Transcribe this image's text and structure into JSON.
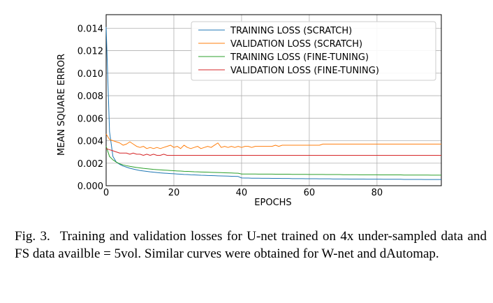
{
  "chart_data": {
    "type": "line",
    "title": "",
    "xlabel": "EPOCHS",
    "ylabel": "MEAN SQUARE ERROR",
    "xlim": [
      0,
      99
    ],
    "ylim": [
      0,
      0.0152
    ],
    "x_ticks": [
      0,
      20,
      40,
      60,
      80
    ],
    "x_tick_labels": [
      "0",
      "20",
      "40",
      "60",
      "80"
    ],
    "y_ticks": [
      0,
      0.002,
      0.004,
      0.006,
      0.008,
      0.01,
      0.012,
      0.014
    ],
    "y_tick_labels": [
      "0.000",
      "0.002",
      "0.004",
      "0.006",
      "0.008",
      "0.010",
      "0.012",
      "0.014"
    ],
    "grid": true,
    "legend_position": "top-right",
    "x": [
      0,
      1,
      2,
      3,
      4,
      5,
      6,
      7,
      8,
      9,
      10,
      11,
      12,
      13,
      14,
      15,
      16,
      17,
      18,
      19,
      20,
      21,
      22,
      23,
      24,
      25,
      26,
      27,
      28,
      29,
      30,
      31,
      32,
      33,
      34,
      35,
      36,
      37,
      38,
      39,
      40,
      41,
      42,
      43,
      44,
      45,
      46,
      47,
      48,
      49,
      50,
      51,
      52,
      53,
      54,
      55,
      56,
      57,
      58,
      59,
      60,
      61,
      62,
      63,
      64,
      65,
      66,
      67,
      68,
      69,
      70,
      71,
      72,
      73,
      74,
      75,
      76,
      77,
      78,
      79,
      80,
      81,
      82,
      83,
      84,
      85,
      86,
      87,
      88,
      89,
      90,
      91,
      92,
      93,
      94,
      95,
      96,
      97,
      98,
      99
    ],
    "series": [
      {
        "name": "TRAINING LOSS (SCRATCH)",
        "color": "#1f77b4",
        "values": [
          0.0141,
          0.0048,
          0.0026,
          0.0021,
          0.0019,
          0.00175,
          0.00165,
          0.00155,
          0.00148,
          0.00141,
          0.00135,
          0.00131,
          0.00127,
          0.00123,
          0.0012,
          0.00117,
          0.00114,
          0.00112,
          0.0011,
          0.00108,
          0.00106,
          0.00104,
          0.00102,
          0.001,
          0.00099,
          0.00097,
          0.00096,
          0.00095,
          0.00093,
          0.00092,
          0.00091,
          0.0009,
          0.00089,
          0.00088,
          0.00087,
          0.00086,
          0.00085,
          0.00084,
          0.00083,
          0.00082,
          0.00069,
          0.00068,
          0.00068,
          0.00067,
          0.00067,
          0.00067,
          0.00066,
          0.00066,
          0.00066,
          0.00065,
          0.00065,
          0.00065,
          0.00064,
          0.00064,
          0.00064,
          0.00063,
          0.00063,
          0.00063,
          0.00063,
          0.00062,
          0.00062,
          0.00062,
          0.00062,
          0.00061,
          0.00061,
          0.00061,
          0.00061,
          0.0006,
          0.0006,
          0.0006,
          0.0006,
          0.0006,
          0.00059,
          0.00059,
          0.00059,
          0.00059,
          0.00059,
          0.00058,
          0.00058,
          0.00058,
          0.00058,
          0.00058,
          0.00057,
          0.00057,
          0.00057,
          0.00057,
          0.00057,
          0.00057,
          0.00056,
          0.00056,
          0.00056,
          0.00056,
          0.00056,
          0.00056,
          0.00055,
          0.00055,
          0.00055,
          0.00055,
          0.00055,
          0.00055
        ]
      },
      {
        "name": "VALIDATION LOSS (SCRATCH)",
        "color": "#ff7f0e",
        "values": [
          0.0046,
          0.0041,
          0.004,
          0.0039,
          0.0038,
          0.0036,
          0.0037,
          0.0039,
          0.0037,
          0.0035,
          0.0034,
          0.0035,
          0.0033,
          0.0034,
          0.0033,
          0.0034,
          0.0033,
          0.0034,
          0.0035,
          0.0036,
          0.0034,
          0.0035,
          0.0033,
          0.0036,
          0.0034,
          0.0033,
          0.0034,
          0.0035,
          0.0033,
          0.0034,
          0.0035,
          0.0034,
          0.0036,
          0.0038,
          0.0034,
          0.0035,
          0.0034,
          0.0035,
          0.0034,
          0.0035,
          0.0034,
          0.0035,
          0.0035,
          0.0034,
          0.0035,
          0.0035,
          0.0035,
          0.0035,
          0.0035,
          0.0035,
          0.0036,
          0.0035,
          0.0036,
          0.0036,
          0.0036,
          0.0036,
          0.0036,
          0.0036,
          0.0036,
          0.0036,
          0.0036,
          0.0036,
          0.0036,
          0.0036,
          0.0037,
          0.0037,
          0.0037,
          0.0037,
          0.0037,
          0.0037,
          0.0037,
          0.0037,
          0.0037,
          0.0037,
          0.0037,
          0.0037,
          0.0037,
          0.0037,
          0.0037,
          0.0037,
          0.0037,
          0.0037,
          0.0037,
          0.0037,
          0.0037,
          0.0037,
          0.0037,
          0.0037,
          0.0037,
          0.0037,
          0.0037,
          0.0037,
          0.0037,
          0.0037,
          0.0037,
          0.0037,
          0.0037,
          0.0037,
          0.0037,
          0.0037
        ]
      },
      {
        "name": "TRAINING LOSS (FINE-TUNING)",
        "color": "#2ca02c",
        "values": [
          0.0035,
          0.0026,
          0.0023,
          0.0021,
          0.00195,
          0.00185,
          0.00178,
          0.00172,
          0.00167,
          0.00162,
          0.00158,
          0.00154,
          0.00151,
          0.00148,
          0.00145,
          0.00143,
          0.00141,
          0.00139,
          0.00137,
          0.00135,
          0.00133,
          0.00131,
          0.0013,
          0.00128,
          0.00127,
          0.00126,
          0.00124,
          0.00123,
          0.00122,
          0.00121,
          0.0012,
          0.00119,
          0.00118,
          0.00117,
          0.00116,
          0.00115,
          0.00114,
          0.00113,
          0.00112,
          0.00111,
          0.00104,
          0.00104,
          0.00104,
          0.00104,
          0.00104,
          0.00103,
          0.00103,
          0.00103,
          0.00103,
          0.00103,
          0.00102,
          0.00102,
          0.00102,
          0.00102,
          0.00102,
          0.00101,
          0.00101,
          0.00101,
          0.00101,
          0.00101,
          0.001,
          0.001,
          0.001,
          0.001,
          0.001,
          0.00099,
          0.00099,
          0.00099,
          0.00099,
          0.00099,
          0.00098,
          0.00098,
          0.00098,
          0.00098,
          0.00098,
          0.00097,
          0.00097,
          0.00097,
          0.00097,
          0.00097,
          0.00097,
          0.00096,
          0.00096,
          0.00096,
          0.00096,
          0.00096,
          0.00096,
          0.00096,
          0.00095,
          0.00095,
          0.00095,
          0.00095,
          0.00095,
          0.00095,
          0.00095,
          0.00095,
          0.00094,
          0.00094,
          0.00094,
          0.00094
        ]
      },
      {
        "name": "VALIDATION LOSS (FINE-TUNING)",
        "color": "#d62728",
        "values": [
          0.0033,
          0.0032,
          0.0031,
          0.003,
          0.0029,
          0.0029,
          0.0029,
          0.0028,
          0.0029,
          0.0028,
          0.0028,
          0.0027,
          0.0028,
          0.0027,
          0.0028,
          0.0027,
          0.0027,
          0.0028,
          0.0027,
          0.0027,
          0.0027,
          0.0027,
          0.0027,
          0.0027,
          0.0027,
          0.0027,
          0.0027,
          0.0027,
          0.0027,
          0.0027,
          0.0027,
          0.0027,
          0.0027,
          0.0027,
          0.0027,
          0.0027,
          0.0027,
          0.0027,
          0.0027,
          0.0027,
          0.0027,
          0.0027,
          0.0027,
          0.0027,
          0.0027,
          0.0027,
          0.0027,
          0.0027,
          0.0027,
          0.0027,
          0.0027,
          0.0027,
          0.0027,
          0.0027,
          0.0027,
          0.0027,
          0.0027,
          0.0027,
          0.0027,
          0.0027,
          0.0027,
          0.0027,
          0.0027,
          0.0027,
          0.0027,
          0.0027,
          0.0027,
          0.0027,
          0.0027,
          0.0027,
          0.0027,
          0.0027,
          0.0027,
          0.0027,
          0.0027,
          0.0027,
          0.0027,
          0.0027,
          0.0027,
          0.0027,
          0.0027,
          0.0027,
          0.0027,
          0.0027,
          0.0027,
          0.0027,
          0.0027,
          0.0027,
          0.0027,
          0.0027,
          0.0027,
          0.0027,
          0.0027,
          0.0027,
          0.0027,
          0.0027,
          0.0027,
          0.0027,
          0.0027,
          0.0027
        ]
      }
    ]
  },
  "caption": {
    "figure_label": "Fig. 3.",
    "text": "Training and validation losses for U-net trained on 4x under-sampled data and FS data availble = 5vol. Similar curves were obtained for W-net and dAutomap."
  }
}
